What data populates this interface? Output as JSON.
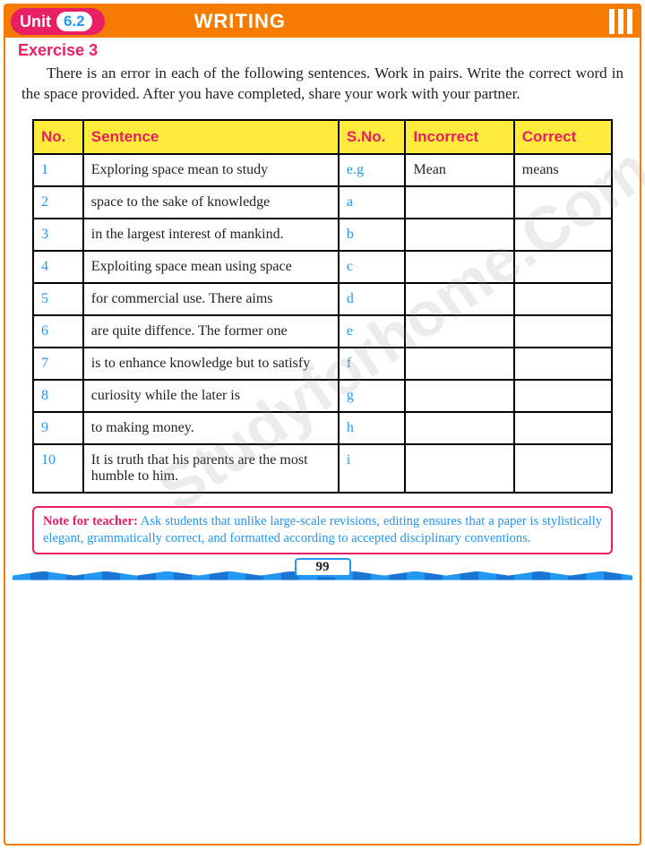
{
  "header": {
    "unit_label": "Unit",
    "unit_number": "6.2",
    "title": "WRITING"
  },
  "exercise_label": "Exercise 3",
  "instructions": "There is an error in each of the following sentences. Work in pairs. Write the correct word in the space provided. After you have completed, share your work with your partner.",
  "watermark": "Studyforhome.Com",
  "table": {
    "headers": {
      "no": "No.",
      "sentence": "Sentence",
      "sno": "S.No.",
      "incorrect": "Incorrect",
      "correct": "Correct"
    },
    "rows": [
      {
        "no": "1",
        "sentence": "Exploring space mean to study",
        "sno": "e.g",
        "incorrect": "Mean",
        "correct": "means"
      },
      {
        "no": "2",
        "sentence": "space to the sake of knowledge",
        "sno": "a",
        "incorrect": "",
        "correct": ""
      },
      {
        "no": "3",
        "sentence": "in the largest interest of mankind.",
        "sno": "b",
        "incorrect": "",
        "correct": ""
      },
      {
        "no": "4",
        "sentence": "Exploiting space mean using space",
        "sno": "c",
        "incorrect": "",
        "correct": ""
      },
      {
        "no": "5",
        "sentence": "for commercial use. There aims",
        "sno": "d",
        "incorrect": "",
        "correct": ""
      },
      {
        "no": "6",
        "sentence": "are quite diffence. The former one",
        "sno": "e",
        "incorrect": "",
        "correct": ""
      },
      {
        "no": "7",
        "sentence": "is to enhance knowledge but to satisfy",
        "sno": "f",
        "incorrect": "",
        "correct": ""
      },
      {
        "no": "8",
        "sentence": "curiosity  while the later is",
        "sno": "g",
        "incorrect": "",
        "correct": ""
      },
      {
        "no": "9",
        "sentence": "to making money.",
        "sno": "h",
        "incorrect": "",
        "correct": ""
      },
      {
        "no": "10",
        "sentence": "It is truth that his parents are the most humble to him.",
        "sno": "i",
        "incorrect": "",
        "correct": ""
      }
    ]
  },
  "note": {
    "label": "Note for teacher:",
    "text": " Ask students that unlike large-scale revisions, editing ensures that a paper is stylistically elegant, grammatically correct, and formatted according to accepted disciplinary conventions."
  },
  "page_number": "99",
  "colors": {
    "orange": "#f57c00",
    "pink": "#e91e63",
    "blue": "#2196f3",
    "yellow": "#ffeb3b"
  }
}
